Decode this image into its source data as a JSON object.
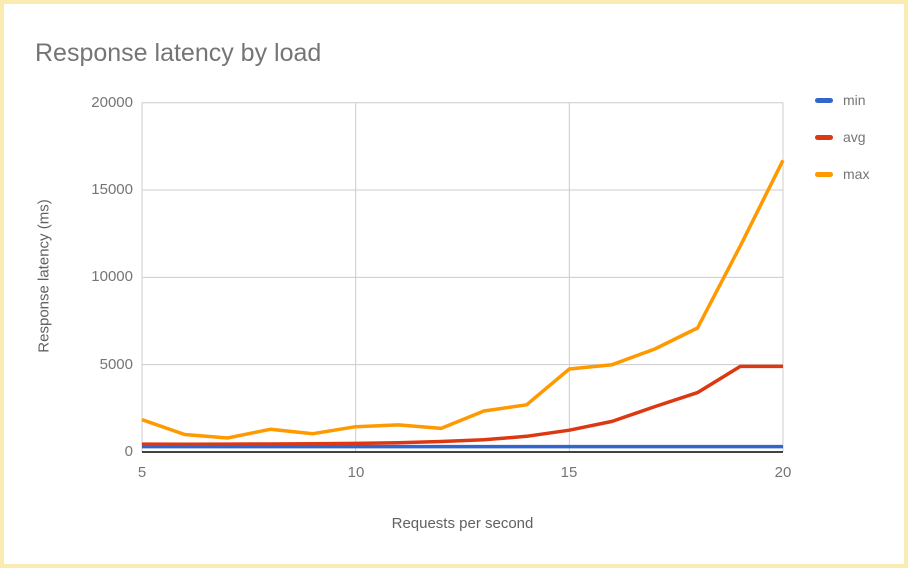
{
  "chart_data": {
    "type": "line",
    "title": "Response latency by load",
    "xlabel": "Requests per second",
    "ylabel": "Response latency (ms)",
    "x": [
      5,
      6,
      7,
      8,
      9,
      10,
      11,
      12,
      13,
      14,
      15,
      16,
      17,
      18,
      19,
      20
    ],
    "series": [
      {
        "name": "min",
        "color": "#3366CC",
        "values": [
          310,
          310,
          310,
          310,
          310,
          310,
          310,
          310,
          310,
          310,
          310,
          310,
          310,
          310,
          310,
          310
        ]
      },
      {
        "name": "avg",
        "color": "#DC3912",
        "values": [
          450,
          440,
          450,
          460,
          470,
          490,
          530,
          600,
          700,
          900,
          1250,
          1750,
          2600,
          3400,
          4900,
          4900
        ]
      },
      {
        "name": "max",
        "color": "#FF9900",
        "values": [
          1850,
          1000,
          800,
          1300,
          1050,
          1450,
          1550,
          1350,
          2350,
          2700,
          4750,
          5000,
          5900,
          7100,
          11800,
          16700
        ]
      }
    ],
    "xticks": [
      5,
      10,
      15,
      20
    ],
    "yticks": [
      0,
      5000,
      10000,
      15000,
      20000
    ],
    "xlim": [
      5,
      20
    ],
    "ylim": [
      0,
      20000
    ],
    "grid": true,
    "legend_position": "right",
    "grid_color": "#CCCCCC",
    "axis_color": "#424242",
    "tick_text_color": "#757575",
    "title_color": "#757575"
  }
}
